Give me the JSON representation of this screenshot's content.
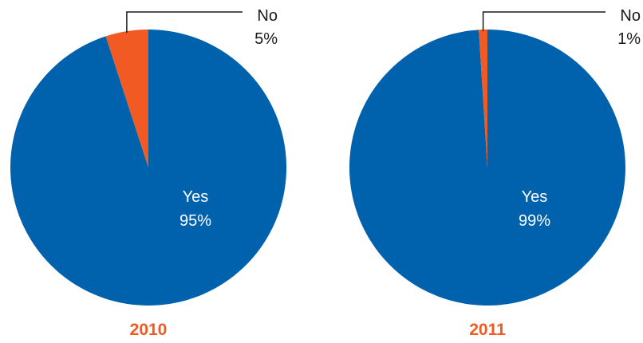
{
  "colors": {
    "yes": "#0062ad",
    "no": "#f15a22",
    "year": "#f15a22",
    "leader": "#1a1a1a"
  },
  "chart_data": [
    {
      "type": "pie",
      "title": "2010",
      "slices": [
        {
          "label": "Yes",
          "value": 95,
          "display": "95%"
        },
        {
          "label": "No",
          "value": 5,
          "display": "5%"
        }
      ]
    },
    {
      "type": "pie",
      "title": "2011",
      "slices": [
        {
          "label": "Yes",
          "value": 99,
          "display": "99%"
        },
        {
          "label": "No",
          "value": 1,
          "display": "1%"
        }
      ]
    }
  ]
}
